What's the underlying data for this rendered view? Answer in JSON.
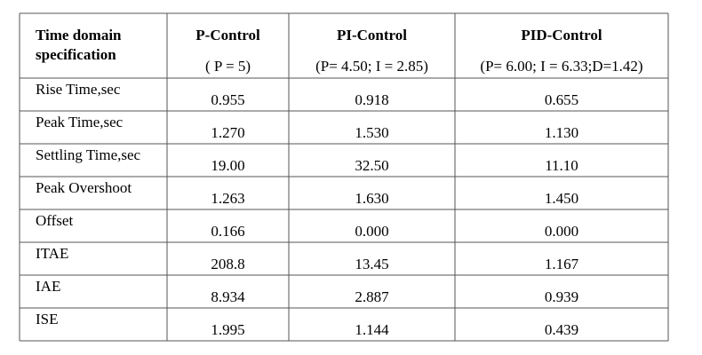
{
  "table": {
    "header": {
      "spec": [
        "Time domain",
        "specification"
      ],
      "columns": [
        {
          "name": "P-Control",
          "params": "( P = 5)"
        },
        {
          "name": "PI-Control",
          "params": "(P= 4.50;  I = 2.85)"
        },
        {
          "name": "PID-Control",
          "params": "(P= 6.00; I = 6.33;D=1.42)"
        }
      ]
    },
    "rows": [
      [
        "Rise Time,sec",
        "0.955",
        "0.918",
        "0.655"
      ],
      [
        "Peak Time,sec",
        "1.270",
        "1.530",
        "1.130"
      ],
      [
        "Settling Time,sec",
        "19.00",
        "32.50",
        "11.10"
      ],
      [
        "Peak Overshoot",
        "1.263",
        "1.630",
        "1.450"
      ],
      [
        "Offset",
        "0.166",
        "0.000",
        "0.000"
      ],
      [
        "ITAE",
        "208.8",
        "13.45",
        "1.167"
      ],
      [
        "IAE",
        "8.934",
        "2.887",
        "0.939"
      ],
      [
        "ISE",
        "1.995",
        "1.144",
        "0.439"
      ]
    ]
  }
}
